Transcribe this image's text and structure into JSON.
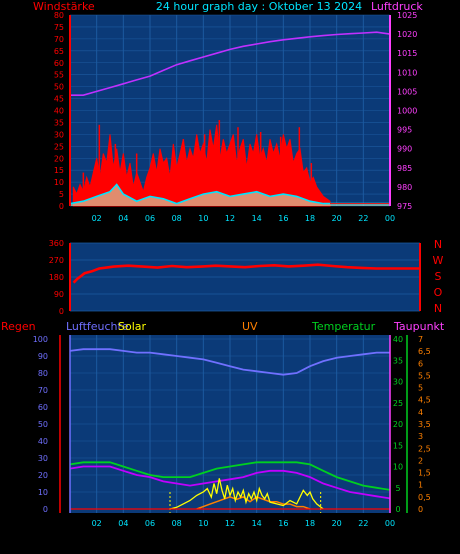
{
  "header": {
    "left": "Windstärke",
    "title": "24 hour graph day : Oktober 13 2024",
    "right": "Luftdruck"
  },
  "panel3_labels": {
    "regen": "Regen",
    "luftfeuchte": "Luftfeuchte",
    "solar": "Solar",
    "uv": "UV",
    "temperatur": "Temperatur",
    "taupunkt": "Taupunkt"
  },
  "colors": {
    "background": "#000000",
    "plot": "#0b3a78",
    "grid": "#1c5aa0",
    "wind": "#ff0000",
    "gust": "#ff0000",
    "wind_avg": "#00e5ff",
    "wind_low": "#c8ffc8",
    "pressure": "#c030ff",
    "direction": "#ff0000",
    "humidity": "#7070ff",
    "temperature": "#00d020",
    "dewpoint": "#c000ff",
    "solar": "#ffff00",
    "uv": "#ff8000",
    "rain": "#ff0000"
  },
  "chart_data": [
    {
      "type": "area",
      "y_left_label": "Windstärke",
      "y_right_label": "Luftdruck",
      "x_ticks": [
        "02",
        "04",
        "06",
        "08",
        "10",
        "12",
        "14",
        "16",
        "18",
        "20",
        "22",
        "00"
      ],
      "y_left_ticks": [
        "0",
        "5",
        "10",
        "15",
        "20",
        "25",
        "30",
        "35",
        "40",
        "45",
        "50",
        "55",
        "60",
        "65",
        "70",
        "75",
        "80"
      ],
      "y_right_ticks": [
        "975",
        "980",
        "985",
        "990",
        "995",
        "1000",
        "1005",
        "1010",
        "1015",
        "1020",
        "1025"
      ],
      "ylim_left": [
        0,
        80
      ],
      "ylim_right": [
        975,
        1025
      ],
      "series": [
        {
          "name": "Windstärke",
          "x": [
            0.25,
            0.5,
            0.75,
            1,
            1.25,
            1.5,
            1.75,
            2,
            2.25,
            2.5,
            2.75,
            3,
            3.25,
            3.5,
            3.75,
            4,
            4.25,
            4.5,
            4.75,
            5,
            5.25,
            5.5,
            5.75,
            6,
            6.25,
            6.5,
            6.75,
            7,
            7.25,
            7.5,
            7.75,
            8,
            8.25,
            8.5,
            8.75,
            9,
            9.25,
            9.5,
            9.75,
            10,
            10.25,
            10.5,
            10.75,
            11,
            11.25,
            11.5,
            11.75,
            12,
            12.25,
            12.5,
            12.75,
            13,
            13.25,
            13.5,
            13.75,
            14,
            14.25,
            14.5,
            14.75,
            15,
            15.25,
            15.5,
            15.75,
            16,
            16.25,
            16.5,
            16.75,
            17,
            17.25,
            17.5,
            17.75,
            18,
            18.25,
            18.5,
            18.75,
            19,
            19.25,
            19.5
          ],
          "values": [
            8,
            5,
            9,
            6,
            12,
            8,
            14,
            20,
            12,
            22,
            18,
            30,
            16,
            24,
            14,
            22,
            12,
            18,
            8,
            14,
            10,
            6,
            12,
            16,
            22,
            14,
            24,
            18,
            20,
            12,
            26,
            16,
            22,
            28,
            18,
            24,
            20,
            30,
            22,
            26,
            18,
            32,
            24,
            34,
            20,
            28,
            22,
            26,
            30,
            18,
            24,
            28,
            16,
            26,
            22,
            30,
            20,
            24,
            18,
            28,
            22,
            26,
            20,
            30,
            24,
            28,
            18,
            22,
            24,
            14,
            16,
            10,
            12,
            8,
            6,
            4,
            3,
            2
          ]
        },
        {
          "name": "Böen",
          "x": [
            1,
            2.2,
            3.4,
            5,
            6.8,
            8.5,
            10.1,
            11.2,
            12.6,
            14.3,
            15.8,
            17.2,
            18.1
          ],
          "values": [
            14,
            34,
            26,
            22,
            18,
            28,
            30,
            36,
            33,
            31,
            29,
            33,
            18
          ]
        },
        {
          "name": "Mittelwind",
          "x": [
            0,
            1,
            2,
            3,
            3.5,
            4,
            5,
            6,
            7,
            8,
            9,
            10,
            11,
            12,
            13,
            14,
            15,
            16,
            17,
            18,
            19,
            20,
            22,
            24
          ],
          "values": [
            1,
            2,
            4,
            6,
            9,
            5,
            2,
            4,
            3,
            1,
            3,
            5,
            6,
            4,
            5,
            6,
            4,
            5,
            4,
            2,
            1,
            1,
            1,
            1
          ]
        },
        {
          "name": "Luftdruck",
          "x": [
            0,
            1,
            2,
            3,
            4,
            5,
            6,
            7,
            8,
            9,
            10,
            11,
            12,
            13,
            14,
            15,
            16,
            17,
            18,
            19,
            20,
            21,
            22,
            23,
            24
          ],
          "values": [
            1004,
            1004,
            1005,
            1006,
            1007,
            1008,
            1009,
            1010.5,
            1012,
            1013,
            1014,
            1015,
            1016,
            1016.8,
            1017.4,
            1018,
            1018.5,
            1018.9,
            1019.3,
            1019.6,
            1019.9,
            1020.1,
            1020.3,
            1020.5,
            1020
          ]
        }
      ]
    },
    {
      "type": "line",
      "y_right_label": "N W S O N",
      "x_ticks": [],
      "y_left_ticks": [
        "0",
        "90",
        "180",
        "270",
        "360"
      ],
      "ylim": [
        0,
        360
      ],
      "series": [
        {
          "name": "Windrichtung",
          "x": [
            0.25,
            0.5,
            0.75,
            1,
            1.5,
            2,
            2.5,
            3,
            4,
            5,
            6,
            7,
            8,
            9,
            10,
            11,
            12,
            13,
            14,
            15,
            16,
            17,
            18,
            19,
            20,
            21,
            22,
            23,
            24
          ],
          "values": [
            150,
            170,
            185,
            200,
            210,
            225,
            230,
            235,
            240,
            235,
            230,
            238,
            232,
            235,
            240,
            236,
            232,
            238,
            242,
            236,
            240,
            245,
            238,
            232,
            228,
            225,
            225,
            225,
            225
          ]
        }
      ]
    },
    {
      "type": "line",
      "x_ticks": [
        "02",
        "04",
        "06",
        "08",
        "10",
        "12",
        "14",
        "16",
        "18",
        "20",
        "22",
        "00"
      ],
      "y_left_ticks": [
        "0",
        "10",
        "20",
        "30",
        "40",
        "50",
        "60",
        "70",
        "80",
        "90",
        "100"
      ],
      "y_right_temp_ticks": [
        "0",
        "5",
        "10",
        "15",
        "20",
        "25",
        "30",
        "35",
        "40"
      ],
      "y_right_uv_ticks": [
        "0",
        "0,5",
        "1",
        "1,5",
        "2",
        "2,5",
        "3",
        "3,5",
        "4",
        "4,5",
        "5",
        "5,5",
        "6",
        "6,5",
        "7"
      ],
      "ylim_left": [
        0,
        100
      ],
      "ylim_temp": [
        0,
        40
      ],
      "ylim_uv": [
        0,
        7
      ],
      "series": [
        {
          "name": "Luftfeuchte",
          "x": [
            0,
            1,
            2,
            3,
            4,
            5,
            6,
            7,
            8,
            9,
            10,
            11,
            12,
            13,
            14,
            15,
            16,
            17,
            18,
            19,
            20,
            21,
            22,
            23,
            24
          ],
          "values": [
            93,
            94,
            94,
            94,
            93,
            92,
            92,
            91,
            90,
            89,
            88,
            86,
            84,
            82,
            81,
            80,
            79,
            80,
            84,
            87,
            89,
            90,
            91,
            92,
            92
          ]
        },
        {
          "name": "Temperatur",
          "x": [
            0,
            1,
            2,
            3,
            4,
            5,
            6,
            7,
            8,
            9,
            10,
            11,
            12,
            13,
            14,
            15,
            16,
            17,
            18,
            19,
            20,
            21,
            22,
            23,
            24
          ],
          "values": [
            10.5,
            11,
            11,
            11,
            10,
            9,
            8,
            7.5,
            7.5,
            7.5,
            8.5,
            9.5,
            10,
            10.5,
            11,
            11,
            11,
            11,
            10.5,
            9,
            7.5,
            6.5,
            5.5,
            5,
            4.5
          ]
        },
        {
          "name": "Taupunkt",
          "x": [
            0,
            1,
            2,
            3,
            4,
            5,
            6,
            7,
            8,
            9,
            10,
            11,
            12,
            13,
            14,
            15,
            16,
            17,
            18,
            19,
            20,
            21,
            22,
            23,
            24
          ],
          "values": [
            9.5,
            10,
            10,
            10,
            9,
            8,
            7.5,
            6.5,
            6,
            5.5,
            6,
            6.5,
            7,
            7.5,
            8.5,
            9,
            9,
            8.5,
            7.5,
            6,
            5,
            4,
            3.5,
            3,
            2.5
          ]
        },
        {
          "name": "Solar",
          "x": [
            7.5,
            8,
            8.5,
            9,
            9.5,
            10,
            10.3,
            10.6,
            10.8,
            11,
            11.2,
            11.4,
            11.6,
            11.8,
            12,
            12.2,
            12.4,
            12.6,
            12.8,
            13,
            13.2,
            13.4,
            13.6,
            13.8,
            14,
            14.2,
            14.4,
            14.6,
            14.8,
            15,
            15.5,
            16,
            16.5,
            17,
            17.5,
            17.8,
            18,
            18.2,
            18.5,
            19
          ],
          "values": [
            0,
            1,
            3,
            5,
            8,
            10,
            12,
            7,
            15,
            9,
            18,
            11,
            6,
            14,
            8,
            12,
            5,
            10,
            7,
            11,
            4,
            9,
            6,
            10,
            5,
            12,
            8,
            6,
            9,
            4,
            3,
            2,
            5,
            3,
            11,
            8,
            10,
            6,
            3,
            0
          ]
        },
        {
          "name": "UV",
          "x": [
            9.5,
            10,
            10.5,
            11,
            11.5,
            12,
            12.5,
            13,
            13.5,
            14,
            14.5,
            15,
            15.5,
            16,
            16.5,
            17,
            17.5,
            18
          ],
          "values": [
            0,
            0.1,
            0.2,
            0.3,
            0.4,
            0.5,
            0.4,
            0.5,
            0.3,
            0.5,
            0.4,
            0.3,
            0.3,
            0.2,
            0.2,
            0.1,
            0.1,
            0
          ]
        },
        {
          "name": "Regen",
          "x": [
            0,
            24
          ],
          "values": [
            0,
            0
          ]
        }
      ]
    }
  ]
}
